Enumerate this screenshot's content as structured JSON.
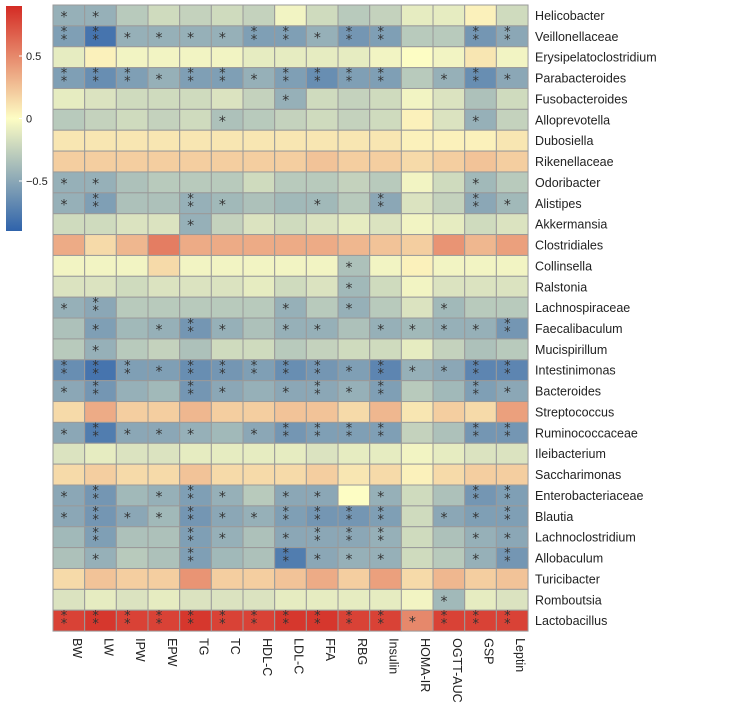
{
  "chart_data": {
    "type": "heatmap",
    "title": "",
    "xlabel": "",
    "ylabel": "",
    "columns": [
      "BW",
      "LW",
      "IPW",
      "EPW",
      "TG",
      "TC",
      "HDL-C",
      "LDL-C",
      "FFA",
      "RBG",
      "Insulin",
      "HOMA-IR",
      "OGTT-AUC",
      "GSP",
      "Leptin"
    ],
    "rows": [
      "Helicobacter",
      "Veillonellaceae",
      "Erysipelatoclostridium",
      "Parabacteroides",
      "Fusobacteroides",
      "Alloprevotella",
      "Dubosiella",
      "Rikenellaceae",
      "Odoribacter",
      "Alistipes",
      "Akkermansia",
      "Clostridiales",
      "Collinsella",
      "Ralstonia",
      "Lachnospiraceae",
      "Faecalibaculum",
      "Mucispirillum",
      "Intestinimonas",
      "Bacteroides",
      "Streptococcus",
      "Ruminococcaceae",
      "Ileibacterium",
      "Saccharimonas",
      "Enterobacteriaceae",
      "Blautia",
      "Lachnoclostridium",
      "Allobaculum",
      "Turicibacter",
      "Romboutsia",
      "Lactobacillus"
    ],
    "values": [
      [
        -0.45,
        -0.45,
        -0.3,
        -0.2,
        -0.25,
        -0.2,
        -0.25,
        -0.05,
        -0.2,
        -0.3,
        -0.25,
        -0.1,
        -0.1,
        0.05,
        -0.2
      ],
      [
        -0.55,
        -0.8,
        -0.45,
        -0.45,
        -0.45,
        -0.45,
        -0.55,
        -0.55,
        -0.45,
        -0.6,
        -0.55,
        -0.3,
        -0.3,
        -0.6,
        -0.5
      ],
      [
        -0.1,
        0.05,
        -0.05,
        -0.05,
        -0.05,
        -0.05,
        -0.1,
        -0.1,
        -0.1,
        -0.1,
        -0.05,
        0.0,
        -0.05,
        0.1,
        -0.05
      ],
      [
        -0.55,
        -0.65,
        -0.55,
        -0.45,
        -0.55,
        -0.55,
        -0.45,
        -0.55,
        -0.65,
        -0.55,
        -0.55,
        -0.3,
        -0.45,
        -0.65,
        -0.5
      ],
      [
        -0.1,
        -0.15,
        -0.2,
        -0.2,
        -0.2,
        -0.15,
        -0.25,
        -0.45,
        -0.2,
        -0.25,
        -0.2,
        -0.05,
        -0.15,
        -0.35,
        -0.2
      ],
      [
        -0.3,
        -0.25,
        -0.2,
        -0.25,
        -0.2,
        -0.35,
        -0.3,
        -0.25,
        -0.2,
        -0.25,
        -0.2,
        0.05,
        -0.15,
        -0.45,
        -0.25
      ],
      [
        0.1,
        0.1,
        0.1,
        0.1,
        0.1,
        0.1,
        0.1,
        0.1,
        0.1,
        0.1,
        0.1,
        0.05,
        0.05,
        0.05,
        0.1
      ],
      [
        0.2,
        0.2,
        0.2,
        0.2,
        0.2,
        0.2,
        0.2,
        0.2,
        0.25,
        0.2,
        0.2,
        0.15,
        0.2,
        0.25,
        0.2
      ],
      [
        -0.45,
        -0.45,
        -0.35,
        -0.3,
        -0.3,
        -0.3,
        -0.2,
        -0.3,
        -0.3,
        -0.25,
        -0.3,
        -0.05,
        -0.2,
        -0.4,
        -0.3
      ],
      [
        -0.45,
        -0.55,
        -0.35,
        -0.35,
        -0.45,
        -0.4,
        -0.35,
        -0.4,
        -0.4,
        -0.3,
        -0.5,
        -0.15,
        -0.25,
        -0.5,
        -0.4
      ],
      [
        -0.2,
        -0.2,
        -0.15,
        -0.15,
        -0.45,
        -0.25,
        -0.15,
        -0.2,
        -0.15,
        -0.1,
        -0.15,
        -0.05,
        -0.1,
        -0.2,
        -0.15
      ],
      [
        0.35,
        0.15,
        0.3,
        0.55,
        0.35,
        0.35,
        0.35,
        0.35,
        0.35,
        0.3,
        0.25,
        0.2,
        0.45,
        0.3,
        0.4
      ],
      [
        -0.05,
        -0.05,
        -0.05,
        0.15,
        -0.05,
        -0.05,
        -0.05,
        -0.05,
        -0.05,
        -0.35,
        -0.05,
        0.05,
        -0.05,
        -0.05,
        -0.05
      ],
      [
        -0.15,
        -0.15,
        -0.2,
        -0.15,
        -0.15,
        -0.15,
        -0.1,
        -0.2,
        -0.15,
        -0.4,
        -0.2,
        -0.05,
        -0.15,
        -0.15,
        -0.15
      ],
      [
        -0.45,
        -0.5,
        -0.3,
        -0.3,
        -0.3,
        -0.3,
        -0.3,
        -0.45,
        -0.3,
        -0.45,
        -0.3,
        -0.15,
        -0.4,
        -0.3,
        -0.3
      ],
      [
        -0.35,
        -0.55,
        -0.4,
        -0.45,
        -0.6,
        -0.45,
        -0.35,
        -0.45,
        -0.45,
        -0.35,
        -0.45,
        -0.4,
        -0.45,
        -0.45,
        -0.6
      ],
      [
        -0.3,
        -0.45,
        -0.3,
        -0.25,
        -0.35,
        -0.2,
        -0.2,
        -0.3,
        -0.25,
        -0.2,
        -0.2,
        -0.1,
        -0.25,
        -0.35,
        -0.3
      ],
      [
        -0.65,
        -0.8,
        -0.55,
        -0.55,
        -0.65,
        -0.6,
        -0.55,
        -0.65,
        -0.6,
        -0.55,
        -0.7,
        -0.45,
        -0.5,
        -0.7,
        -0.7
      ],
      [
        -0.5,
        -0.6,
        -0.45,
        -0.4,
        -0.6,
        -0.5,
        -0.45,
        -0.5,
        -0.5,
        -0.45,
        -0.55,
        -0.3,
        -0.4,
        -0.55,
        -0.5
      ],
      [
        0.15,
        0.35,
        0.2,
        0.2,
        0.3,
        0.2,
        0.2,
        0.25,
        0.25,
        0.15,
        0.3,
        0.1,
        0.2,
        0.15,
        0.4
      ],
      [
        -0.5,
        -0.75,
        -0.5,
        -0.5,
        -0.45,
        -0.4,
        -0.5,
        -0.6,
        -0.55,
        -0.55,
        -0.55,
        -0.25,
        -0.35,
        -0.6,
        -0.6
      ],
      [
        -0.15,
        -0.1,
        -0.15,
        -0.15,
        -0.1,
        -0.1,
        -0.1,
        -0.1,
        -0.15,
        -0.1,
        -0.1,
        -0.05,
        -0.1,
        -0.15,
        -0.15
      ],
      [
        0.15,
        0.2,
        0.15,
        0.15,
        0.25,
        0.15,
        0.15,
        0.15,
        0.2,
        0.1,
        0.15,
        0.05,
        0.15,
        0.2,
        0.2
      ],
      [
        -0.5,
        -0.6,
        -0.4,
        -0.45,
        -0.55,
        -0.45,
        -0.3,
        -0.5,
        -0.5,
        0.0,
        -0.45,
        -0.2,
        -0.35,
        -0.6,
        -0.55
      ],
      [
        -0.5,
        -0.6,
        -0.5,
        -0.4,
        -0.6,
        -0.5,
        -0.45,
        -0.55,
        -0.6,
        -0.6,
        -0.55,
        -0.2,
        -0.5,
        -0.55,
        -0.55
      ],
      [
        -0.4,
        -0.55,
        -0.35,
        -0.35,
        -0.55,
        -0.45,
        -0.35,
        -0.5,
        -0.5,
        -0.5,
        -0.45,
        -0.2,
        -0.35,
        -0.45,
        -0.5
      ],
      [
        -0.35,
        -0.45,
        -0.3,
        -0.35,
        -0.55,
        -0.4,
        -0.35,
        -0.75,
        -0.5,
        -0.45,
        -0.45,
        -0.2,
        -0.3,
        -0.45,
        -0.6
      ],
      [
        0.15,
        0.25,
        0.2,
        0.2,
        0.45,
        0.2,
        0.2,
        0.25,
        0.35,
        0.2,
        0.4,
        0.15,
        0.3,
        0.2,
        0.25
      ],
      [
        -0.15,
        -0.1,
        -0.15,
        -0.1,
        -0.15,
        -0.15,
        -0.15,
        -0.1,
        -0.1,
        -0.1,
        -0.1,
        -0.05,
        -0.4,
        -0.1,
        -0.15
      ],
      [
        0.8,
        0.85,
        0.8,
        0.8,
        0.85,
        0.8,
        0.8,
        0.85,
        0.85,
        0.8,
        0.8,
        0.5,
        0.8,
        0.8,
        0.8
      ]
    ],
    "significance": [
      [
        "*",
        "*",
        "",
        "",
        "",
        "",
        "",
        "",
        "",
        "",
        "",
        "",
        "",
        "",
        ""
      ],
      [
        "**",
        "**",
        "*",
        "*",
        "*",
        "*",
        "**",
        "**",
        "*",
        "**",
        "**",
        "",
        "",
        "**",
        "**"
      ],
      [
        "",
        "",
        "",
        "",
        "",
        "",
        "",
        "",
        "",
        "",
        "",
        "",
        "",
        "",
        ""
      ],
      [
        "**",
        "**",
        "**",
        "*",
        "**",
        "**",
        "*",
        "**",
        "**",
        "**",
        "**",
        "",
        "*",
        "**",
        "*"
      ],
      [
        "",
        "",
        "",
        "",
        "",
        "",
        "",
        "*",
        "",
        "",
        "",
        "",
        "",
        "",
        ""
      ],
      [
        "",
        "",
        "",
        "",
        "",
        "*",
        "",
        "",
        "",
        "",
        "",
        "",
        "",
        "*",
        ""
      ],
      [
        "",
        "",
        "",
        "",
        "",
        "",
        "",
        "",
        "",
        "",
        "",
        "",
        "",
        "",
        ""
      ],
      [
        "",
        "",
        "",
        "",
        "",
        "",
        "",
        "",
        "",
        "",
        "",
        "",
        "",
        "",
        ""
      ],
      [
        "*",
        "*",
        "",
        "",
        "",
        "",
        "",
        "",
        "",
        "",
        "",
        "",
        "",
        "*",
        ""
      ],
      [
        "*",
        "**",
        "",
        "",
        "**",
        "*",
        "",
        "",
        "*",
        "",
        "**",
        "",
        "",
        "**",
        "*"
      ],
      [
        "",
        "",
        "",
        "",
        "*",
        "",
        "",
        "",
        "",
        "",
        "",
        "",
        "",
        "",
        ""
      ],
      [
        "",
        "",
        "",
        "",
        "",
        "",
        "",
        "",
        "",
        "",
        "",
        "",
        "",
        "",
        ""
      ],
      [
        "",
        "",
        "",
        "",
        "",
        "",
        "",
        "",
        "",
        "*",
        "",
        "",
        "",
        "",
        ""
      ],
      [
        "",
        "",
        "",
        "",
        "",
        "",
        "",
        "",
        "",
        "*",
        "",
        "",
        "",
        "",
        ""
      ],
      [
        "*",
        "**",
        "",
        "",
        "",
        "",
        "",
        "*",
        "",
        "*",
        "",
        "",
        "*",
        "",
        ""
      ],
      [
        "",
        "*",
        "",
        "*",
        "**",
        "*",
        "",
        "*",
        "*",
        "",
        "*",
        "*",
        "*",
        "*",
        "**"
      ],
      [
        "",
        "*",
        "",
        "",
        "",
        "",
        "",
        "",
        "",
        "",
        "",
        "",
        "",
        "",
        ""
      ],
      [
        "**",
        "**",
        "**",
        "*",
        "**",
        "**",
        "**",
        "**",
        "**",
        "*",
        "**",
        "*",
        "*",
        "**",
        "**"
      ],
      [
        "*",
        "**",
        "",
        "",
        "**",
        "*",
        "",
        "*",
        "**",
        "*",
        "**",
        "",
        "",
        "**",
        "*"
      ],
      [
        "",
        "",
        "",
        "",
        "",
        "",
        "",
        "",
        "",
        "",
        "",
        "",
        "",
        "",
        ""
      ],
      [
        "*",
        "**",
        "*",
        "*",
        "*",
        "",
        "*",
        "**",
        "**",
        "**",
        "**",
        "",
        "",
        "**",
        "**"
      ],
      [
        "",
        "",
        "",
        "",
        "",
        "",
        "",
        "",
        "",
        "",
        "",
        "",
        "",
        "",
        ""
      ],
      [
        "",
        "",
        "",
        "",
        "",
        "",
        "",
        "",
        "",
        "",
        "",
        "",
        "",
        "",
        ""
      ],
      [
        "*",
        "**",
        "",
        "*",
        "**",
        "*",
        "",
        "*",
        "*",
        "",
        "*",
        "",
        "",
        "**",
        "**"
      ],
      [
        "*",
        "**",
        "*",
        "*",
        "**",
        "*",
        "*",
        "**",
        "**",
        "**",
        "**",
        "",
        "*",
        "*",
        "**"
      ],
      [
        "",
        "**",
        "",
        "",
        "**",
        "*",
        "",
        "*",
        "**",
        "**",
        "**",
        "",
        "",
        "*",
        "*"
      ],
      [
        "",
        "*",
        "",
        "",
        "**",
        "",
        "",
        "**",
        "*",
        "*",
        "*",
        "",
        "",
        "*",
        "**"
      ],
      [
        "",
        "",
        "",
        "",
        "",
        "",
        "",
        "",
        "",
        "",
        "",
        "",
        "",
        "",
        ""
      ],
      [
        "",
        "",
        "",
        "",
        "",
        "",
        "",
        "",
        "",
        "",
        "",
        "",
        "*",
        "",
        ""
      ],
      [
        "**",
        "**",
        "**",
        "**",
        "**",
        "**",
        "**",
        "**",
        "**",
        "**",
        "**",
        "*",
        "**",
        "**",
        "**"
      ]
    ],
    "colorbar": {
      "ticks": [
        "0.5",
        "0",
        "−0.5"
      ],
      "tick_values": [
        0.5,
        0,
        -0.5
      ],
      "range": [
        -0.9,
        0.9
      ]
    },
    "colors": {
      "low": "#2f63ab",
      "mid": "#fdfdc4",
      "high": "#d42b24",
      "grid": "#9a9a9a",
      "text": "#222222",
      "star": "#333333"
    }
  }
}
